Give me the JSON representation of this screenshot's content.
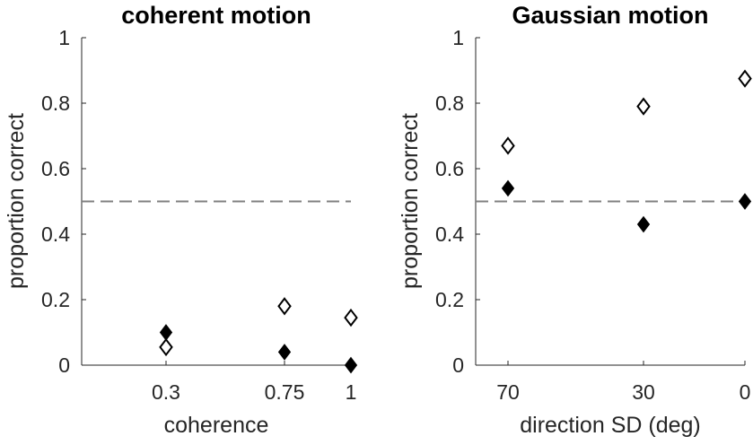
{
  "chart_data": [
    {
      "type": "scatter",
      "title": "coherent motion",
      "xlabel": "coherence",
      "ylabel": "proportion correct",
      "x_tick_labels": [
        "0.3",
        "0.75",
        "1"
      ],
      "y_ticks": [
        0,
        0.2,
        0.4,
        0.6,
        0.8,
        1
      ],
      "y_tick_labels": [
        "0",
        "0.2",
        "0.4",
        "0.6",
        "0.8",
        "1"
      ],
      "ylim": [
        0,
        1
      ],
      "reference_line": 0.5,
      "series": [
        {
          "marker": "filled-diamond",
          "color": "#000000",
          "values": [
            0.1,
            0.04,
            0.0
          ]
        },
        {
          "marker": "open-diamond",
          "color": "#000000",
          "values": [
            0.055,
            0.18,
            0.145
          ]
        }
      ]
    },
    {
      "type": "scatter",
      "title": "Gaussian motion",
      "xlabel": "direction SD (deg)",
      "ylabel": "proportion correct",
      "x_tick_labels": [
        "70",
        "30",
        "0"
      ],
      "y_ticks": [
        0,
        0.2,
        0.4,
        0.6,
        0.8,
        1
      ],
      "y_tick_labels": [
        "0",
        "0.2",
        "0.4",
        "0.6",
        "0.8",
        "1"
      ],
      "ylim": [
        0,
        1
      ],
      "reference_line": 0.5,
      "series": [
        {
          "marker": "filled-diamond",
          "color": "#000000",
          "values": [
            0.54,
            0.43,
            0.5
          ]
        },
        {
          "marker": "open-diamond",
          "color": "#000000",
          "values": [
            0.67,
            0.79,
            0.875
          ]
        }
      ]
    }
  ]
}
